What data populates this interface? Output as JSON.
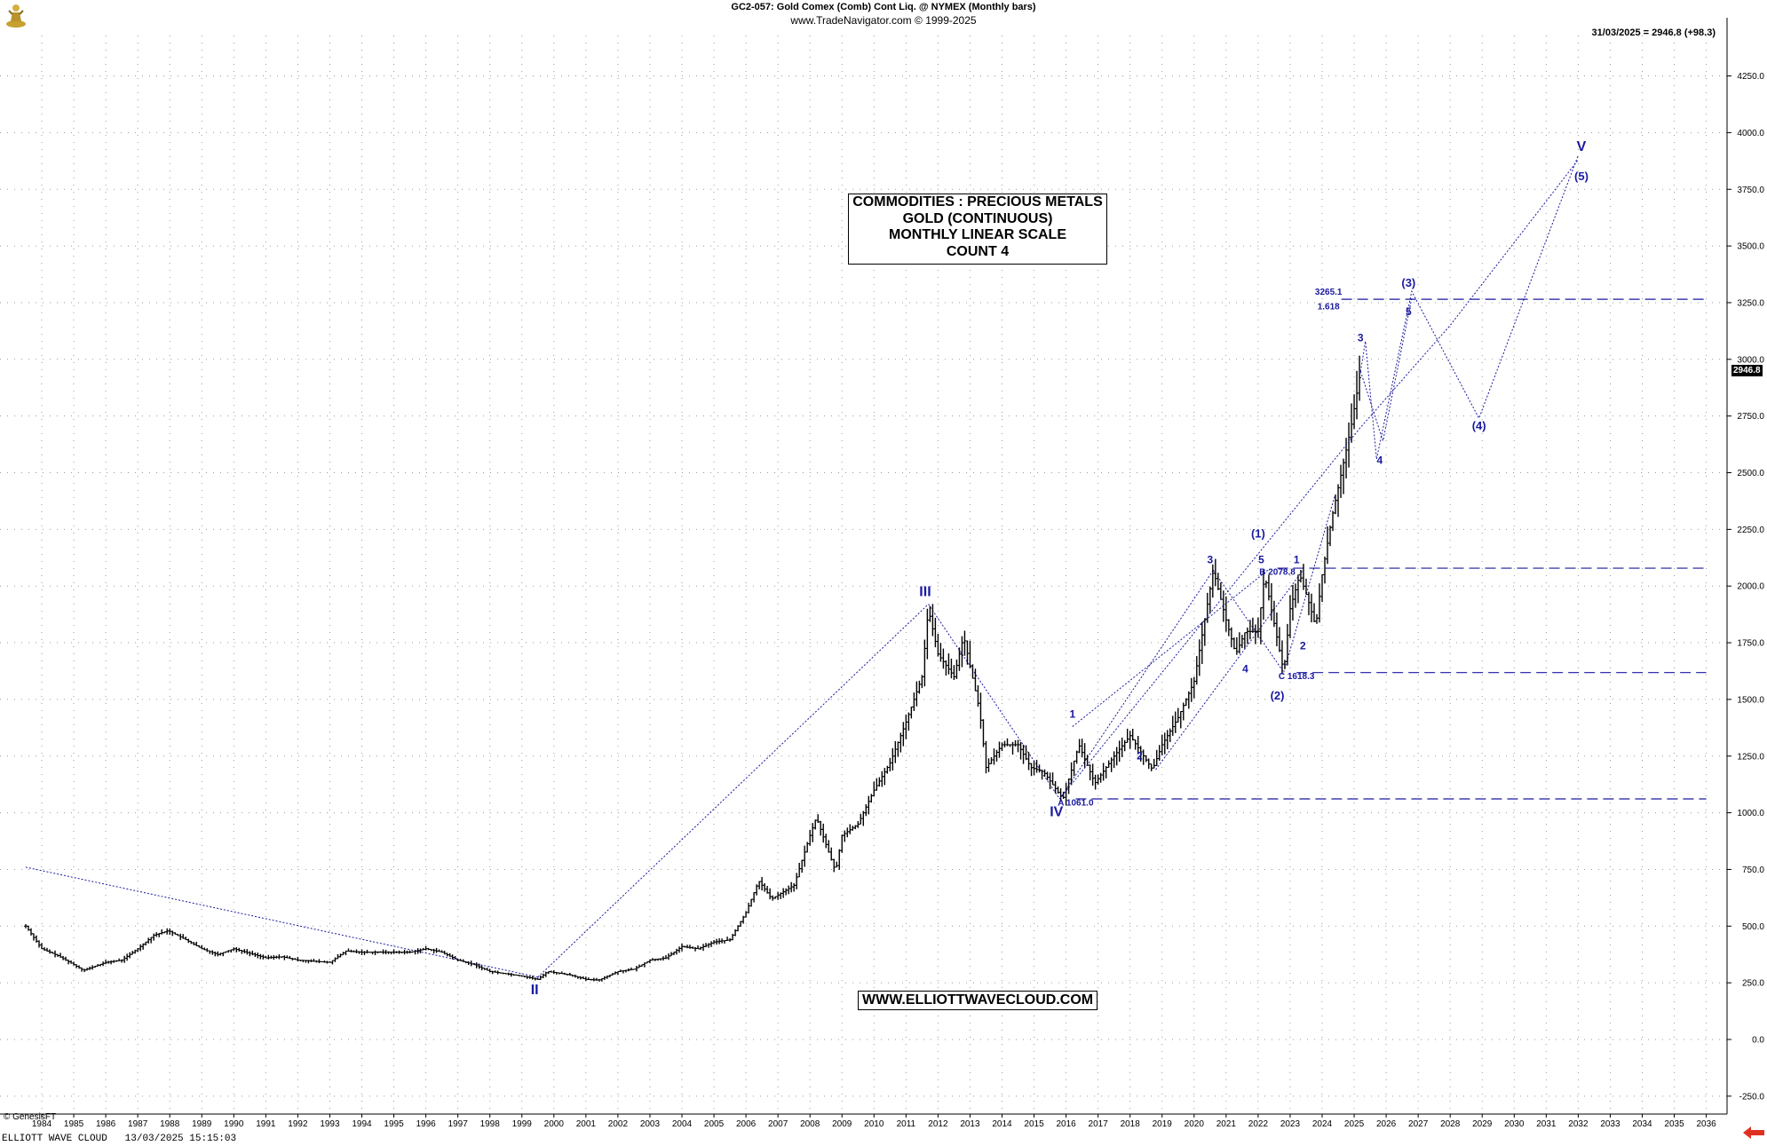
{
  "header": {
    "title": "GC2-057:  Gold Comex (Comb) Cont Liq. @ NYMEX  (Monthly bars)",
    "copyright": "www.TradeNavigator.com © 1999-2025",
    "last_bar": "31/03/2025 = 2946.8 (+98.3)"
  },
  "info_box": {
    "line1": "COMMODITIES : PRECIOUS METALS",
    "line2": "GOLD (CONTINUOUS)",
    "line3": "MONTHLY LINEAR SCALE",
    "line4": "COUNT 4"
  },
  "url_label": "WWW.ELLIOTTWAVECLOUD.COM",
  "footer": {
    "genesis": "© GenesisFT",
    "brand": "ELLIOTT WAVE CLOUD",
    "timestamp": "13/03/2025 15:15:03"
  },
  "last_price_label": "2946.8",
  "icons": {
    "logo": "trader-figure-icon",
    "scroll": "red-left-arrow-icon"
  },
  "colors": {
    "wave_labels": "#1a1aa0",
    "price_bars": "#000000",
    "grid": "#9a9a9a",
    "arrow": "#e03020"
  },
  "chart_data": {
    "type": "ohlc",
    "ylim": [
      -250,
      4250
    ],
    "xlim": [
      1983.5,
      2036.5
    ],
    "y_ticks": [
      -250,
      0,
      250,
      500,
      750,
      1000,
      1250,
      1500,
      1750,
      2000,
      2250,
      2500,
      2750,
      3000,
      3250,
      3500,
      3750,
      4000,
      4250
    ],
    "y_tick_labels": [
      "-250.0",
      "0.0",
      "250.0",
      "500.0",
      "750.0",
      "1000.0",
      "1250.0",
      "1500.0",
      "1750.0",
      "2000.0",
      "2250.0",
      "2500.0",
      "2750.0",
      "3000.0",
      "3250.0",
      "3500.0",
      "3750.0",
      "4000.0",
      "4250.0"
    ],
    "x_ticks": [
      "1984",
      "1985",
      "1986",
      "1987",
      "1988",
      "1989",
      "1990",
      "1991",
      "1992",
      "1993",
      "1994",
      "1995",
      "1996",
      "1997",
      "1998",
      "1999",
      "2000",
      "2001",
      "2002",
      "2003",
      "2004",
      "2005",
      "2006",
      "2007",
      "2008",
      "2009",
      "2010",
      "2011",
      "2012",
      "2013",
      "2014",
      "2015",
      "2016",
      "2017",
      "2018",
      "2019",
      "2020",
      "2021",
      "2022",
      "2023",
      "2024",
      "2025",
      "2026",
      "2027",
      "2028",
      "2029",
      "2030",
      "2031",
      "2032",
      "2033",
      "2034",
      "2035",
      "2036"
    ],
    "price_path": [
      [
        1983.5,
        500
      ],
      [
        1984.0,
        400
      ],
      [
        1984.5,
        370
      ],
      [
        1985.0,
        330
      ],
      [
        1985.3,
        305
      ],
      [
        1986.0,
        340
      ],
      [
        1986.5,
        350
      ],
      [
        1987.0,
        400
      ],
      [
        1987.5,
        460
      ],
      [
        1987.95,
        480
      ],
      [
        1988.5,
        440
      ],
      [
        1989.0,
        400
      ],
      [
        1989.5,
        375
      ],
      [
        1990.0,
        400
      ],
      [
        1990.5,
        380
      ],
      [
        1991.0,
        360
      ],
      [
        1991.5,
        365
      ],
      [
        1992.0,
        350
      ],
      [
        1992.5,
        345
      ],
      [
        1993.0,
        340
      ],
      [
        1993.5,
        390
      ],
      [
        1994.0,
        385
      ],
      [
        1994.5,
        385
      ],
      [
        1995.0,
        385
      ],
      [
        1995.5,
        385
      ],
      [
        1996.0,
        400
      ],
      [
        1996.5,
        385
      ],
      [
        1997.0,
        350
      ],
      [
        1997.5,
        330
      ],
      [
        1998.0,
        300
      ],
      [
        1998.5,
        290
      ],
      [
        1999.0,
        280
      ],
      [
        1999.5,
        265
      ],
      [
        1999.8,
        300
      ],
      [
        2000.5,
        285
      ],
      [
        2001.0,
        265
      ],
      [
        2001.4,
        262
      ],
      [
        2002.0,
        300
      ],
      [
        2002.5,
        310
      ],
      [
        2003.0,
        350
      ],
      [
        2003.5,
        360
      ],
      [
        2004.0,
        410
      ],
      [
        2004.5,
        400
      ],
      [
        2005.0,
        430
      ],
      [
        2005.5,
        440
      ],
      [
        2006.0,
        560
      ],
      [
        2006.4,
        700
      ],
      [
        2006.8,
        620
      ],
      [
        2007.5,
        680
      ],
      [
        2008.0,
        900
      ],
      [
        2008.2,
        980
      ],
      [
        2008.8,
        740
      ],
      [
        2009.0,
        900
      ],
      [
        2009.5,
        950
      ],
      [
        2010.0,
        1100
      ],
      [
        2010.5,
        1220
      ],
      [
        2011.0,
        1400
      ],
      [
        2011.5,
        1600
      ],
      [
        2011.7,
        1900
      ],
      [
        2012.0,
        1700
      ],
      [
        2012.5,
        1600
      ],
      [
        2012.8,
        1780
      ],
      [
        2013.3,
        1450
      ],
      [
        2013.5,
        1200
      ],
      [
        2014.0,
        1300
      ],
      [
        2014.5,
        1300
      ],
      [
        2014.9,
        1200
      ],
      [
        2015.3,
        1180
      ],
      [
        2015.9,
        1060
      ],
      [
        2016.4,
        1300
      ],
      [
        2016.9,
        1130
      ],
      [
        2017.5,
        1250
      ],
      [
        2018.0,
        1340
      ],
      [
        2018.7,
        1190
      ],
      [
        2019.0,
        1300
      ],
      [
        2019.5,
        1420
      ],
      [
        2020.0,
        1580
      ],
      [
        2020.6,
        2070
      ],
      [
        2021.0,
        1850
      ],
      [
        2021.3,
        1700
      ],
      [
        2021.6,
        1800
      ],
      [
        2022.0,
        1800
      ],
      [
        2022.2,
        2050
      ],
      [
        2022.8,
        1620
      ],
      [
        2023.0,
        1900
      ],
      [
        2023.3,
        2050
      ],
      [
        2023.6,
        1920
      ],
      [
        2023.8,
        1820
      ],
      [
        2024.0,
        2050
      ],
      [
        2024.3,
        2300
      ],
      [
        2024.6,
        2500
      ],
      [
        2024.9,
        2700
      ],
      [
        2025.2,
        2946.8
      ]
    ],
    "projection_paths": [
      [
        [
          2025.2,
          2946.8
        ],
        [
          2025.35,
          3080
        ],
        [
          2025.7,
          2560
        ],
        [
          2026.8,
          3300
        ],
        [
          2028.9,
          2740
        ],
        [
          2032.0,
          3900
        ]
      ],
      [
        [
          2025.2,
          2946.8
        ],
        [
          2025.9,
          2640
        ],
        [
          2026.8,
          3270
        ]
      ],
      [
        [
          2015.8,
          1061
        ],
        [
          2025.2,
          2700
        ],
        [
          2028.0,
          3150
        ],
        [
          2032.0,
          3880
        ]
      ]
    ],
    "trend_lines": [
      [
        [
          1983.5,
          760
        ],
        [
          1999.5,
          275
        ]
      ],
      [
        [
          1999.5,
          275
        ],
        [
          2011.7,
          1920
        ]
      ],
      [
        [
          2011.7,
          1920
        ],
        [
          2015.8,
          1061
        ]
      ],
      [
        [
          2015.8,
          1061
        ],
        [
          2020.6,
          2070
        ]
      ],
      [
        [
          2016.2,
          1380
        ],
        [
          2022.3,
          2070
        ]
      ],
      [
        [
          2018.8,
          1190
        ],
        [
          2023.4,
          2070
        ]
      ],
      [
        [
          2020.6,
          2070
        ],
        [
          2022.8,
          1620
        ]
      ],
      [
        [
          2022.8,
          1620
        ],
        [
          2024.4,
          2400
        ]
      ]
    ],
    "horizontal_levels": [
      {
        "y": 3265.1,
        "x_start": 2024.6,
        "x_end": 2036.0
      },
      {
        "y": 2078.8,
        "x_start": 2022.6,
        "x_end": 2036.0
      },
      {
        "y": 1618.3,
        "x_start": 2023.2,
        "x_end": 2036.0
      },
      {
        "y": 1061.0,
        "x_start": 2016.3,
        "x_end": 2036.0
      }
    ],
    "annotations": [
      {
        "text": "II",
        "x": 1999.4,
        "y": 200,
        "size": 16,
        "bold": true
      },
      {
        "text": "III",
        "x": 2011.6,
        "y": 1955,
        "size": 16,
        "bold": true
      },
      {
        "text": "IV",
        "x": 2015.7,
        "y": 985,
        "size": 16,
        "bold": true
      },
      {
        "text": "V",
        "x": 2032.1,
        "y": 3920,
        "size": 16,
        "bold": true
      },
      {
        "text": "1",
        "x": 2016.2,
        "y": 1420,
        "size": 12,
        "bold": true
      },
      {
        "text": "2",
        "x": 2018.3,
        "y": 1235,
        "size": 12,
        "bold": true
      },
      {
        "text": "3",
        "x": 2020.5,
        "y": 2100,
        "size": 12,
        "bold": true
      },
      {
        "text": "4",
        "x": 2021.6,
        "y": 1620,
        "size": 12,
        "bold": true
      },
      {
        "text": "5",
        "x": 2022.1,
        "y": 2100,
        "size": 12,
        "bold": true
      },
      {
        "text": "(1)",
        "x": 2022.0,
        "y": 2215,
        "size": 13,
        "bold": true
      },
      {
        "text": "(2)",
        "x": 2022.6,
        "y": 1500,
        "size": 13,
        "bold": true
      },
      {
        "text": "1",
        "x": 2023.2,
        "y": 2100,
        "size": 12,
        "bold": true
      },
      {
        "text": "2",
        "x": 2023.4,
        "y": 1720,
        "size": 12,
        "bold": true
      },
      {
        "text": "3",
        "x": 2025.2,
        "y": 3080,
        "size": 12,
        "bold": true
      },
      {
        "text": "4",
        "x": 2025.8,
        "y": 2540,
        "size": 12,
        "bold": true
      },
      {
        "text": "5",
        "x": 2026.7,
        "y": 3195,
        "size": 12,
        "bold": true
      },
      {
        "text": "(3)",
        "x": 2026.7,
        "y": 3320,
        "size": 13,
        "bold": true
      },
      {
        "text": "(4)",
        "x": 2028.9,
        "y": 2690,
        "size": 13,
        "bold": true
      },
      {
        "text": "(5)",
        "x": 2032.1,
        "y": 3790,
        "size": 13,
        "bold": true
      },
      {
        "text": "3265.1",
        "x": 2024.2,
        "y": 3285,
        "size": 10,
        "bold": true
      },
      {
        "text": "1.618",
        "x": 2024.2,
        "y": 3220,
        "size": 10,
        "bold": true
      },
      {
        "text": "B 2078.8",
        "x": 2022.6,
        "y": 2050,
        "size": 10,
        "bold": true
      },
      {
        "text": "C 1618.3",
        "x": 2023.2,
        "y": 1590,
        "size": 10,
        "bold": true
      },
      {
        "text": "A 1061.0",
        "x": 2016.3,
        "y": 1032,
        "size": 10,
        "bold": true
      }
    ]
  }
}
